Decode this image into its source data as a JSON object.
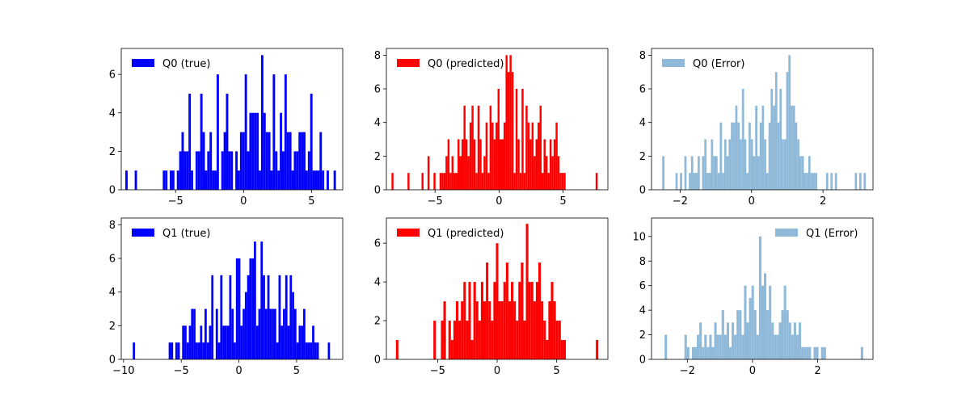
{
  "chart_data": [
    {
      "type": "histogram",
      "legend": "Q0 (true)",
      "legend_loc": "upper left",
      "color": "#0000ff",
      "alpha": 1.0,
      "xlim": [
        -9.0,
        7.3
      ],
      "ylim": [
        0,
        7.35
      ],
      "xticks": [
        -5,
        0,
        5
      ],
      "xtick_labels": [
        "−5",
        "0",
        "5"
      ],
      "yticks": [
        0,
        2,
        4,
        6
      ],
      "ytick_labels": [
        "0",
        "2",
        "4",
        "6"
      ],
      "bins": {
        "range": [
          -8.7,
          6.8
        ],
        "counts": [
          1,
          0,
          0,
          0,
          1,
          0,
          0,
          0,
          0,
          0,
          0,
          0,
          0,
          0,
          0,
          0,
          1,
          1,
          0,
          1,
          1,
          0,
          1,
          2,
          3,
          2,
          2,
          5,
          1,
          0,
          2,
          2,
          5,
          3,
          1,
          2,
          3,
          1,
          1,
          6,
          0,
          2,
          3,
          5,
          2,
          2,
          0,
          2,
          1,
          3,
          3,
          6,
          2,
          4,
          4,
          4,
          4,
          1,
          7,
          4,
          3,
          3,
          1,
          6,
          2,
          1,
          4,
          2,
          6,
          3,
          3,
          1,
          2,
          2,
          3,
          3,
          3,
          1,
          2,
          5,
          1,
          1,
          1,
          3,
          1,
          0,
          1,
          0,
          0,
          1
        ]
      }
    },
    {
      "type": "histogram",
      "legend": "Q0 (predicted)",
      "legend_loc": "upper left",
      "color": "#ff0000",
      "alpha": 1.0,
      "xlim": [
        -8.8,
        8.5
      ],
      "ylim": [
        0,
        8.4
      ],
      "xticks": [
        -5,
        0,
        5
      ],
      "xtick_labels": [
        "−5",
        "0",
        "5"
      ],
      "yticks": [
        0,
        2,
        4,
        6,
        8
      ],
      "ytick_labels": [
        "0",
        "2",
        "4",
        "6",
        "8"
      ],
      "bins": {
        "range": [
          -8.4,
          7.7
        ],
        "counts": [
          1,
          0,
          0,
          0,
          0,
          0,
          0,
          0,
          1,
          0,
          0,
          0,
          0,
          0,
          0,
          1,
          0,
          0,
          2,
          0,
          0,
          1,
          0,
          0,
          1,
          1,
          1,
          2,
          3,
          1,
          2,
          1,
          1,
          3,
          2,
          3,
          5,
          3,
          2,
          4,
          5,
          3,
          1,
          5,
          3,
          1,
          2,
          4,
          1,
          5,
          4,
          3,
          4,
          6,
          3,
          3,
          4,
          8,
          7,
          8,
          7,
          1,
          6,
          3,
          1,
          6,
          1,
          5,
          4,
          3,
          4,
          2,
          3,
          4,
          5,
          1,
          3,
          2,
          1,
          3,
          2,
          3,
          4,
          2,
          1,
          1,
          1,
          0,
          0,
          0,
          0,
          0,
          0,
          0,
          0,
          0,
          0,
          0,
          0,
          0,
          0,
          0,
          1
        ]
      }
    },
    {
      "type": "histogram",
      "legend": "Q0 (Error)",
      "legend_loc": "upper left",
      "color": "#8fb9d8",
      "alpha": 1.0,
      "xlim": [
        -2.8,
        3.4
      ],
      "ylim": [
        0,
        8.4
      ],
      "xticks": [
        -2,
        0,
        2
      ],
      "xtick_labels": [
        "−2",
        "0",
        "2"
      ],
      "yticks": [
        0,
        2,
        4,
        6,
        8
      ],
      "ytick_labels": [
        "0",
        "2",
        "4",
        "6",
        "8"
      ],
      "bins": {
        "range": [
          -2.5,
          3.2
        ],
        "counts": [
          2,
          0,
          0,
          0,
          0,
          0,
          1,
          0,
          1,
          0,
          2,
          0,
          1,
          2,
          1,
          1,
          2,
          0,
          2,
          3,
          1,
          1,
          3,
          2,
          2,
          1,
          4,
          1,
          3,
          2,
          3,
          4,
          4,
          5,
          4,
          3,
          6,
          3,
          1,
          4,
          3,
          2,
          5,
          2,
          4,
          5,
          3,
          1,
          4,
          6,
          5,
          7,
          4,
          6,
          3,
          3,
          7,
          8,
          5,
          5,
          4,
          3,
          2,
          2,
          1,
          1,
          2,
          1,
          1,
          1,
          0,
          0,
          0,
          0,
          1,
          0,
          1,
          0,
          1,
          0,
          0,
          0,
          0,
          0,
          0,
          0,
          0,
          1,
          0,
          1,
          0,
          1
        ]
      }
    },
    {
      "type": "histogram",
      "legend": "Q1 (true)",
      "legend_loc": "upper left",
      "color": "#0000ff",
      "alpha": 1.0,
      "xlim": [
        -10.2,
        9.0
      ],
      "ylim": [
        0,
        8.4
      ],
      "xticks": [
        -10,
        -5,
        0,
        5
      ],
      "xtick_labels": [
        "−10",
        "−5",
        "0",
        "5"
      ],
      "yticks": [
        0,
        2,
        4,
        6,
        8
      ],
      "ytick_labels": [
        "0",
        "2",
        "4",
        "6",
        "8"
      ],
      "bins": {
        "range": [
          -9.2,
          7.9
        ],
        "counts": [
          1,
          0,
          0,
          0,
          0,
          0,
          0,
          0,
          0,
          0,
          0,
          0,
          0,
          0,
          0,
          0,
          1,
          1,
          0,
          1,
          1,
          0,
          2,
          2,
          1,
          2,
          3,
          3,
          1,
          1,
          2,
          1,
          3,
          1,
          2,
          5,
          0,
          3,
          1,
          5,
          2,
          2,
          2,
          5,
          3,
          1,
          6,
          6,
          2,
          3,
          4,
          5,
          6,
          6,
          7,
          2,
          3,
          7,
          5,
          3,
          5,
          3,
          3,
          3,
          1,
          5,
          2,
          3,
          5,
          2,
          5,
          4,
          3,
          1,
          2,
          2,
          3,
          1,
          1,
          1,
          2,
          1,
          1,
          0,
          0,
          0,
          0,
          1
        ]
      }
    },
    {
      "type": "histogram",
      "legend": "Q1 (predicted)",
      "legend_loc": "upper left",
      "color": "#ff0000",
      "alpha": 1.0,
      "xlim": [
        -9.3,
        9.3
      ],
      "ylim": [
        0,
        7.3
      ],
      "xticks": [
        -5,
        0,
        5
      ],
      "xtick_labels": [
        "−5",
        "0",
        "5"
      ],
      "yticks": [
        0,
        2,
        4,
        6
      ],
      "ytick_labels": [
        "0",
        "2",
        "4",
        "6"
      ],
      "bins": {
        "range": [
          -8.5,
          8.5
        ],
        "counts": [
          1,
          0,
          0,
          0,
          0,
          0,
          0,
          0,
          0,
          0,
          0,
          0,
          0,
          0,
          0,
          2,
          0,
          0,
          2,
          3,
          0,
          2,
          1,
          2,
          3,
          2,
          3,
          4,
          2,
          4,
          1,
          4,
          3,
          2,
          4,
          3,
          5,
          3,
          2,
          4,
          6,
          3,
          3,
          4,
          5,
          3,
          4,
          3,
          2,
          4,
          5,
          2,
          7,
          4,
          4,
          3,
          4,
          5,
          3,
          2,
          1,
          3,
          4,
          3,
          2,
          2,
          1,
          1,
          0,
          0,
          0,
          0,
          0,
          0,
          0,
          0,
          0,
          0,
          0,
          0,
          1
        ]
      }
    },
    {
      "type": "histogram",
      "legend": "Q1 (Error)",
      "legend_loc": "upper right",
      "color": "#8fb9d8",
      "alpha": 1.0,
      "xlim": [
        -3.1,
        3.7
      ],
      "ylim": [
        0,
        11.5
      ],
      "xticks": [
        -2,
        0,
        2
      ],
      "xtick_labels": [
        "−2",
        "0",
        "2"
      ],
      "yticks": [
        0,
        2,
        4,
        6,
        8,
        10
      ],
      "ytick_labels": [
        "0",
        "2",
        "4",
        "6",
        "8",
        "10"
      ],
      "bins": {
        "range": [
          -2.7,
          3.4
        ],
        "counts": [
          2,
          0,
          0,
          0,
          0,
          0,
          0,
          0,
          2,
          1,
          0,
          1,
          1,
          2,
          3,
          1,
          2,
          1,
          2,
          1,
          3,
          2,
          2,
          4,
          2,
          3,
          1,
          3,
          2,
          4,
          4,
          2,
          6,
          3,
          5,
          6,
          4,
          2,
          10,
          6,
          7,
          4,
          6,
          3,
          2,
          2,
          3,
          4,
          6,
          4,
          3,
          2,
          3,
          2,
          3,
          1,
          1,
          1,
          1,
          0,
          1,
          1,
          0,
          1,
          1,
          0,
          0,
          0,
          0,
          0,
          0,
          0,
          0,
          0,
          0,
          0,
          0,
          0,
          0,
          1
        ]
      }
    }
  ]
}
